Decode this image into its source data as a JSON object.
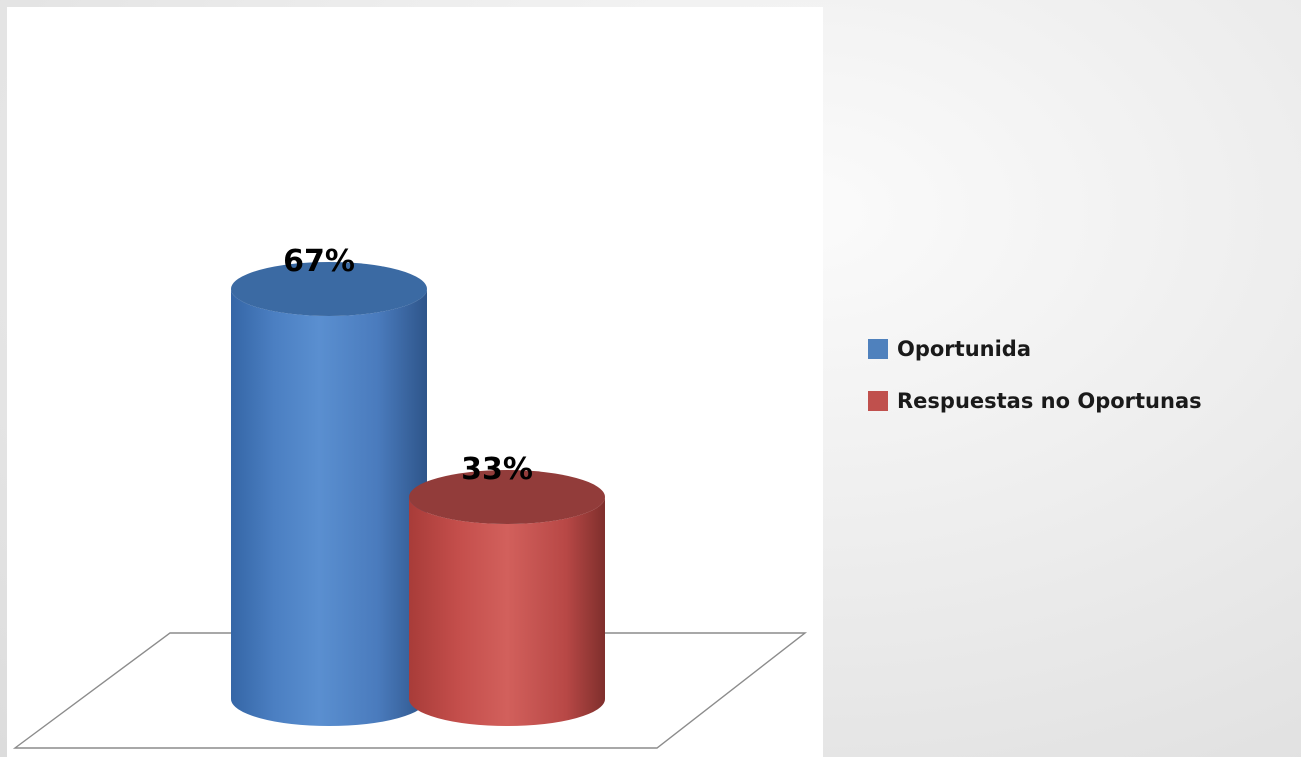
{
  "chart_data": {
    "type": "bar",
    "style": "3d-cylinder",
    "categories": [
      "Oportunida",
      "Respuestas no Oportunas"
    ],
    "values": [
      67,
      33
    ],
    "data_labels": [
      "67%",
      "33%"
    ],
    "ylim": [
      0,
      100
    ],
    "title": "",
    "xlabel": "",
    "ylabel": "",
    "grid": false,
    "legend_position": "right",
    "colors": [
      "#4f81bd",
      "#c0504d"
    ]
  }
}
